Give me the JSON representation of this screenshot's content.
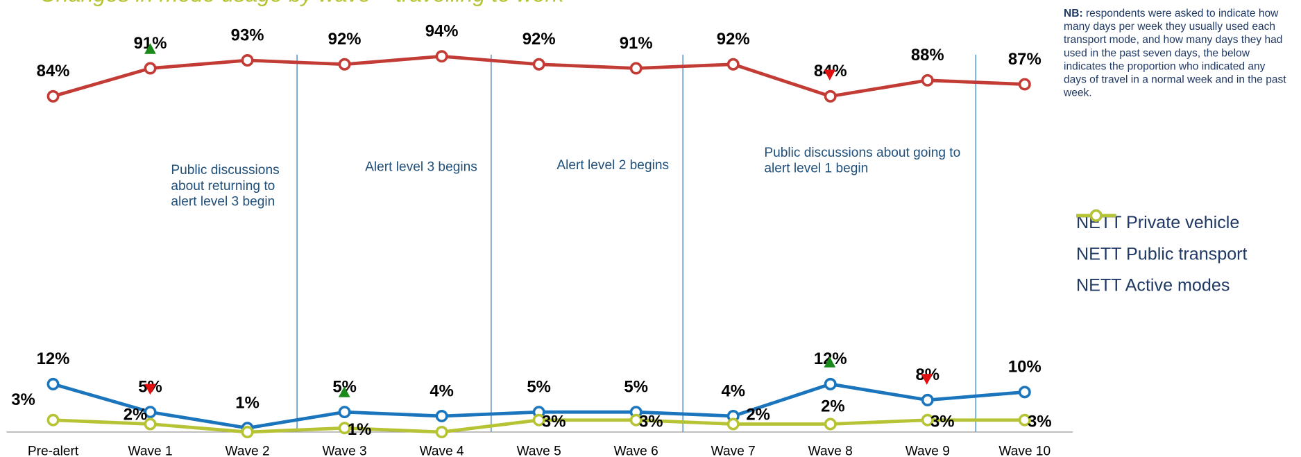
{
  "chart_data": {
    "type": "line",
    "title": "Changes in mode usage by wave – travelling to work",
    "categories": [
      "Pre-alert",
      "Wave 1",
      "Wave 2",
      "Wave 3",
      "Wave 4",
      "Wave 5",
      "Wave 6",
      "Wave 7",
      "Wave 8",
      "Wave 9",
      "Wave 10"
    ],
    "series": [
      {
        "name": "NETT Private vehicle",
        "color": "#c23b34",
        "values": [
          84,
          91,
          93,
          92,
          94,
          92,
          91,
          92,
          84,
          88,
          87
        ],
        "value_labels": [
          "84%",
          "91%",
          "93%",
          "92%",
          "94%",
          "92%",
          "91%",
          "92%",
          "84%",
          "88%",
          "87%"
        ]
      },
      {
        "name": "NETT Public transport",
        "color": "#1b75bc",
        "values": [
          12,
          5,
          1,
          5,
          4,
          5,
          5,
          4,
          12,
          8,
          10
        ],
        "value_labels": [
          "12%",
          "5%",
          "1%",
          "5%",
          "4%",
          "5%",
          "5%",
          "4%",
          "12%",
          "8%",
          "10%"
        ]
      },
      {
        "name": "NETT Active modes",
        "color": "#b5c334",
        "values": [
          3,
          2,
          0,
          1,
          0,
          3,
          3,
          2,
          2,
          3,
          3
        ],
        "value_labels": [
          "3%",
          "2%",
          null,
          "1%",
          null,
          "3%",
          "3%",
          "2%",
          "2%",
          "3%",
          "3%"
        ]
      }
    ],
    "ylim": [
      0,
      100
    ],
    "annotations": [
      "Public discussions about returning to alert level 3 begin",
      "Alert level 3 begins",
      "Alert level 2 begins",
      "Public discussions about going to alert level 1 begin"
    ],
    "note": {
      "label": "NB:",
      "text": "respondents were asked to indicate how many days per week they usually used each transport mode, and how many days they had used in the past seven days, the below indicates the proportion who indicated any days of travel in a normal week and in the past week."
    },
    "legend": "right"
  }
}
